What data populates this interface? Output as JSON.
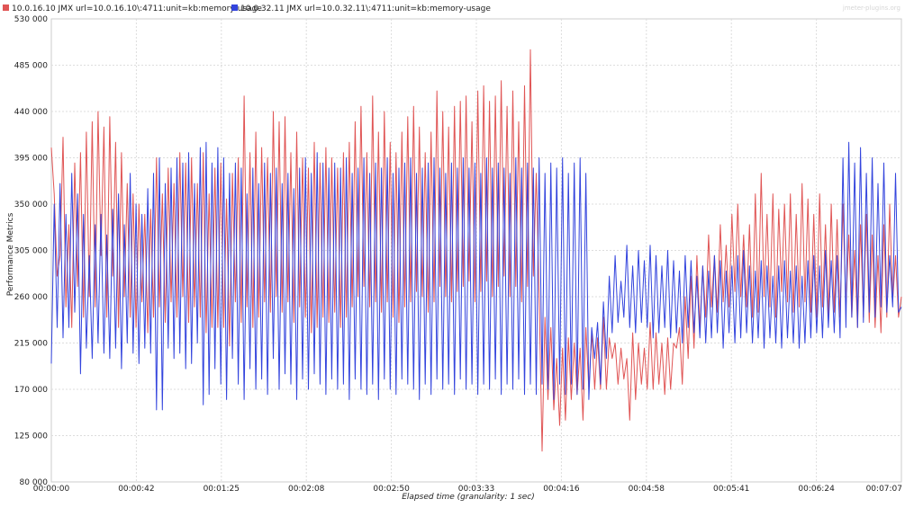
{
  "chart_data": {
    "type": "line",
    "watermark": "jmeter-plugins.org",
    "xlabel": "Elapsed time (granularity: 1 sec)",
    "ylabel": "Performance Metrics",
    "ylim": [
      80000,
      530000
    ],
    "y_ticks": [
      "80 000",
      "125 000",
      "170 000",
      "215 000",
      "260 000",
      "305 000",
      "350 000",
      "395 000",
      "440 000",
      "485 000",
      "530 000"
    ],
    "xlim_seconds": [
      0,
      427
    ],
    "x_ticks": [
      "00:00:00",
      "00:00:42",
      "00:01:25",
      "00:02:08",
      "00:02:50",
      "00:03:33",
      "00:04:16",
      "00:04:58",
      "00:05:41",
      "00:06:24",
      "00:07:07"
    ],
    "grid": true,
    "legend_position": "top-left",
    "series": [
      {
        "name": "10.0.16.10 JMX url=10.0.16.10\\:4711:unit=kb:memory-usage",
        "color": "#e05555",
        "values": [
          405000,
          360000,
          280000,
          300000,
          415000,
          250000,
          330000,
          230000,
          390000,
          270000,
          400000,
          240000,
          420000,
          260000,
          430000,
          250000,
          440000,
          300000,
          425000,
          240000,
          435000,
          280000,
          410000,
          230000,
          400000,
          260000,
          370000,
          240000,
          360000,
          230000,
          350000,
          255000,
          340000,
          225000,
          345000,
          240000,
          395000,
          250000,
          360000,
          235000,
          385000,
          255000,
          370000,
          240000,
          400000,
          260000,
          390000,
          235000,
          395000,
          250000,
          370000,
          240000,
          400000,
          225000,
          360000,
          230000,
          385000,
          230000,
          390000,
          230000,
          355000,
          212000,
          380000,
          255000,
          395000,
          235000,
          455000,
          250000,
          400000,
          230000,
          420000,
          240000,
          405000,
          255000,
          395000,
          245000,
          440000,
          260000,
          430000,
          245000,
          435000,
          255000,
          400000,
          235000,
          420000,
          250000,
          395000,
          240000,
          385000,
          225000,
          410000,
          230000,
          390000,
          240000,
          405000,
          235000,
          395000,
          245000,
          385000,
          230000,
          400000,
          240000,
          410000,
          250000,
          430000,
          260000,
          445000,
          270000,
          400000,
          250000,
          455000,
          255000,
          420000,
          245000,
          440000,
          255000,
          410000,
          240000,
          400000,
          235000,
          420000,
          250000,
          435000,
          255000,
          445000,
          265000,
          425000,
          260000,
          400000,
          245000,
          420000,
          255000,
          460000,
          270000,
          440000,
          260000,
          425000,
          255000,
          445000,
          265000,
          450000,
          270000,
          455000,
          275000,
          430000,
          255000,
          460000,
          265000,
          465000,
          275000,
          450000,
          260000,
          455000,
          270000,
          470000,
          280000,
          445000,
          260000,
          460000,
          270000,
          430000,
          255000,
          465000,
          270000,
          500000,
          280000,
          380000,
          260000,
          110000,
          240000,
          160000,
          230000,
          150000,
          200000,
          135000,
          210000,
          140000,
          220000,
          160000,
          215000,
          165000,
          210000,
          140000,
          230000,
          170000,
          225000,
          170000,
          220000,
          170000,
          240000,
          170000,
          220000,
          200000,
          215000,
          175000,
          210000,
          180000,
          200000,
          140000,
          225000,
          160000,
          215000,
          175000,
          210000,
          170000,
          235000,
          170000,
          225000,
          175000,
          215000,
          165000,
          220000,
          170000,
          215000,
          210000,
          230000,
          175000,
          260000,
          200000,
          280000,
          210000,
          300000,
          230000,
          290000,
          240000,
          320000,
          250000,
          300000,
          245000,
          330000,
          255000,
          310000,
          250000,
          340000,
          265000,
          350000,
          260000,
          320000,
          250000,
          330000,
          240000,
          360000,
          245000,
          380000,
          260000,
          340000,
          250000,
          360000,
          240000,
          345000,
          265000,
          350000,
          255000,
          360000,
          245000,
          340000,
          250000,
          370000,
          255000,
          355000,
          245000,
          340000,
          240000,
          360000,
          250000,
          330000,
          240000,
          350000,
          245000,
          335000,
          240000,
          350000,
          250000,
          320000,
          240000,
          305000,
          230000,
          330000,
          240000,
          340000,
          235000,
          320000,
          230000,
          300000,
          225000,
          330000,
          240000,
          350000,
          255000,
          300000,
          240000,
          260000
        ]
      },
      {
        "name": "10.0.32.11 JMX url=10.0.32.11\\:4711:unit=kb:memory-usage",
        "color": "#3344dd",
        "values": [
          195000,
          350000,
          230000,
          370000,
          220000,
          340000,
          230000,
          380000,
          245000,
          360000,
          185000,
          340000,
          210000,
          300000,
          200000,
          330000,
          215000,
          340000,
          205000,
          320000,
          200000,
          345000,
          210000,
          360000,
          190000,
          330000,
          215000,
          380000,
          205000,
          350000,
          195000,
          340000,
          210000,
          365000,
          205000,
          380000,
          150000,
          395000,
          150000,
          370000,
          210000,
          385000,
          200000,
          395000,
          205000,
          390000,
          190000,
          400000,
          195000,
          370000,
          215000,
          405000,
          155000,
          410000,
          165000,
          390000,
          190000,
          405000,
          175000,
          395000,
          160000,
          380000,
          200000,
          390000,
          175000,
          385000,
          160000,
          360000,
          190000,
          385000,
          170000,
          370000,
          180000,
          390000,
          165000,
          380000,
          200000,
          385000,
          170000,
          370000,
          185000,
          380000,
          175000,
          365000,
          160000,
          385000,
          180000,
          395000,
          170000,
          380000,
          185000,
          400000,
          175000,
          390000,
          165000,
          385000,
          180000,
          390000,
          170000,
          385000,
          175000,
          395000,
          160000,
          380000,
          180000,
          385000,
          170000,
          395000,
          165000,
          380000,
          175000,
          390000,
          160000,
          385000,
          180000,
          395000,
          170000,
          380000,
          165000,
          385000,
          180000,
          390000,
          175000,
          395000,
          170000,
          380000,
          160000,
          385000,
          175000,
          390000,
          165000,
          395000,
          180000,
          385000,
          170000,
          380000,
          175000,
          390000,
          165000,
          385000,
          180000,
          395000,
          170000,
          385000,
          175000,
          390000,
          165000,
          380000,
          175000,
          395000,
          170000,
          385000,
          180000,
          390000,
          165000,
          385000,
          175000,
          380000,
          170000,
          395000,
          180000,
          385000,
          165000,
          390000,
          175000,
          385000,
          165000,
          395000,
          175000,
          380000,
          170000,
          390000,
          160000,
          385000,
          175000,
          395000,
          165000,
          380000,
          175000,
          390000,
          165000,
          395000,
          170000,
          380000,
          160000,
          230000,
          200000,
          235000,
          175000,
          255000,
          200000,
          280000,
          225000,
          300000,
          235000,
          275000,
          240000,
          310000,
          230000,
          290000,
          225000,
          305000,
          235000,
          295000,
          230000,
          310000,
          220000,
          300000,
          225000,
          290000,
          230000,
          305000,
          220000,
          295000,
          225000,
          285000,
          215000,
          300000,
          230000,
          295000,
          225000,
          280000,
          220000,
          290000,
          215000,
          285000,
          220000,
          300000,
          225000,
          295000,
          210000,
          285000,
          225000,
          290000,
          215000,
          300000,
          220000,
          305000,
          225000,
          290000,
          215000,
          285000,
          220000,
          295000,
          210000,
          290000,
          220000,
          280000,
          215000,
          290000,
          210000,
          295000,
          220000,
          285000,
          215000,
          290000,
          210000,
          280000,
          215000,
          295000,
          220000,
          300000,
          225000,
          290000,
          220000,
          305000,
          230000,
          295000,
          225000,
          300000,
          220000,
          395000,
          230000,
          410000,
          240000,
          390000,
          230000,
          405000,
          235000,
          380000,
          245000,
          395000,
          240000,
          370000,
          250000,
          390000,
          245000,
          300000,
          250000,
          380000,
          245000,
          250000
        ]
      }
    ]
  }
}
